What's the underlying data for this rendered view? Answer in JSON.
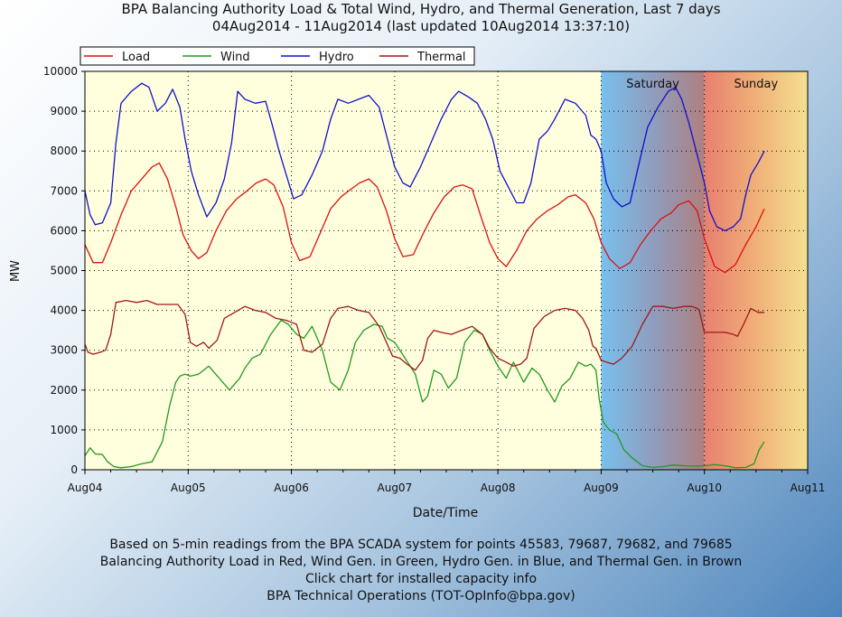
{
  "title_line1": "BPA Balancing Authority Load & Total Wind, Hydro, and Thermal Generation, Last 7 days",
  "title_line2": "04Aug2014 - 11Aug2014 (last updated 10Aug2014 13:37:10)",
  "footer": {
    "line1": "Based on 5-min readings from the BPA SCADA system for points 45583, 79687, 79682, and 79685",
    "line2": "Balancing Authority Load in Red, Wind Gen. in Green, Hydro Gen. in Blue, and Thermal Gen. in Brown",
    "line3": "Click chart for installed capacity info",
    "line4": "BPA Technical Operations (TOT-OpInfo@bpa.gov)"
  },
  "chart_data": {
    "type": "line",
    "xlabel": "Date/Time",
    "ylabel": "MW",
    "ylim": [
      0,
      10000
    ],
    "yticks": [
      0,
      1000,
      2000,
      3000,
      4000,
      5000,
      6000,
      7000,
      8000,
      9000,
      10000
    ],
    "xlim": [
      0,
      7
    ],
    "xticks": [
      {
        "x": 0,
        "label": "Aug04"
      },
      {
        "x": 1,
        "label": "Aug05"
      },
      {
        "x": 2,
        "label": "Aug06"
      },
      {
        "x": 3,
        "label": "Aug07"
      },
      {
        "x": 4,
        "label": "Aug08"
      },
      {
        "x": 5,
        "label": "Aug09"
      },
      {
        "x": 6,
        "label": "Aug10"
      },
      {
        "x": 7,
        "label": "Aug11"
      }
    ],
    "grid": true,
    "legend_position": "top-left",
    "weekend_regions": [
      {
        "label": "Saturday",
        "from": 5,
        "to": 6,
        "colors": [
          "#78c0ee",
          "#8f9dbe",
          "#ae8080"
        ]
      },
      {
        "label": "Sunday",
        "from": 6,
        "to": 7,
        "colors": [
          "#e88070",
          "#f0b078",
          "#f4e090"
        ]
      }
    ],
    "weekday_color": "#ffffde",
    "series": [
      {
        "name": "Load",
        "color": "#dd1111",
        "x": [
          0,
          0.08,
          0.17,
          0.25,
          0.35,
          0.45,
          0.55,
          0.65,
          0.72,
          0.8,
          0.88,
          0.95,
          1.03,
          1.1,
          1.18,
          1.27,
          1.37,
          1.47,
          1.57,
          1.66,
          1.75,
          1.83,
          1.92,
          2.0,
          2.08,
          2.18,
          2.28,
          2.38,
          2.48,
          2.58,
          2.66,
          2.75,
          2.83,
          2.92,
          3.0,
          3.08,
          3.18,
          3.28,
          3.38,
          3.48,
          3.58,
          3.66,
          3.75,
          3.83,
          3.92,
          4.0,
          4.08,
          4.18,
          4.28,
          4.38,
          4.48,
          4.58,
          4.68,
          4.75,
          4.85,
          4.93,
          5.0,
          5.08,
          5.18,
          5.28,
          5.38,
          5.48,
          5.58,
          5.68,
          5.75,
          5.85,
          5.93,
          6.0,
          6.1,
          6.2,
          6.3,
          6.4,
          6.5,
          6.58
        ],
        "y": [
          5650,
          5200,
          5200,
          5700,
          6400,
          7000,
          7300,
          7600,
          7700,
          7300,
          6600,
          5900,
          5500,
          5300,
          5450,
          6000,
          6500,
          6800,
          7000,
          7200,
          7300,
          7150,
          6600,
          5700,
          5250,
          5350,
          5950,
          6550,
          6850,
          7050,
          7200,
          7300,
          7100,
          6500,
          5800,
          5350,
          5400,
          5950,
          6450,
          6850,
          7100,
          7150,
          7050,
          6400,
          5700,
          5300,
          5100,
          5500,
          6000,
          6300,
          6500,
          6650,
          6850,
          6900,
          6700,
          6300,
          5700,
          5300,
          5050,
          5200,
          5650,
          6000,
          6300,
          6450,
          6650,
          6750,
          6500,
          5800,
          5100,
          4950,
          5150,
          5650,
          6100,
          6550
        ]
      },
      {
        "name": "Wind",
        "color": "#229922",
        "x": [
          0,
          0.05,
          0.1,
          0.17,
          0.22,
          0.28,
          0.35,
          0.45,
          0.55,
          0.65,
          0.75,
          0.82,
          0.88,
          0.92,
          0.97,
          1.02,
          1.1,
          1.2,
          1.3,
          1.4,
          1.5,
          1.55,
          1.62,
          1.7,
          1.8,
          1.9,
          1.97,
          2.05,
          2.12,
          2.2,
          2.3,
          2.38,
          2.47,
          2.55,
          2.62,
          2.7,
          2.8,
          2.88,
          2.93,
          3.0,
          3.1,
          3.2,
          3.27,
          3.32,
          3.38,
          3.45,
          3.52,
          3.6,
          3.68,
          3.77,
          3.85,
          3.92,
          4.0,
          4.08,
          4.15,
          4.25,
          4.33,
          4.4,
          4.48,
          4.55,
          4.62,
          4.7,
          4.78,
          4.85,
          4.9,
          4.95,
          4.98,
          5.02,
          5.08,
          5.15,
          5.22,
          5.3,
          5.4,
          5.5,
          5.6,
          5.7,
          5.8,
          5.9,
          6.0,
          6.1,
          6.2,
          6.3,
          6.4,
          6.48,
          6.53,
          6.58
        ],
        "y": [
          350,
          550,
          400,
          380,
          200,
          80,
          50,
          80,
          150,
          200,
          700,
          1600,
          2200,
          2350,
          2400,
          2350,
          2400,
          2600,
          2300,
          2000,
          2300,
          2550,
          2800,
          2900,
          3400,
          3750,
          3650,
          3400,
          3300,
          3600,
          3000,
          2200,
          2000,
          2500,
          3200,
          3500,
          3650,
          3600,
          3300,
          3200,
          2800,
          2400,
          1700,
          1850,
          2500,
          2400,
          2050,
          2300,
          3200,
          3500,
          3400,
          3000,
          2600,
          2300,
          2700,
          2200,
          2550,
          2400,
          2000,
          1700,
          2100,
          2300,
          2700,
          2600,
          2650,
          2500,
          1800,
          1200,
          1000,
          900,
          500,
          300,
          100,
          60,
          80,
          120,
          100,
          90,
          100,
          130,
          100,
          50,
          60,
          150,
          500,
          700
        ]
      },
      {
        "name": "Hydro",
        "color": "#1111cc",
        "x": [
          0,
          0.05,
          0.1,
          0.17,
          0.25,
          0.3,
          0.35,
          0.45,
          0.55,
          0.62,
          0.7,
          0.78,
          0.85,
          0.92,
          0.97,
          1.03,
          1.1,
          1.18,
          1.27,
          1.35,
          1.42,
          1.48,
          1.55,
          1.65,
          1.75,
          1.82,
          1.88,
          1.95,
          2.02,
          2.1,
          2.2,
          2.3,
          2.38,
          2.45,
          2.55,
          2.65,
          2.75,
          2.85,
          2.93,
          3.0,
          3.08,
          3.15,
          3.25,
          3.35,
          3.45,
          3.55,
          3.62,
          3.72,
          3.8,
          3.88,
          3.95,
          4.02,
          4.1,
          4.18,
          4.25,
          4.32,
          4.4,
          4.48,
          4.55,
          4.65,
          4.75,
          4.85,
          4.9,
          4.95,
          5.0,
          5.05,
          5.12,
          5.2,
          5.28,
          5.35,
          5.45,
          5.55,
          5.65,
          5.72,
          5.78,
          5.85,
          5.92,
          6.0,
          6.05,
          6.12,
          6.2,
          6.28,
          6.35,
          6.4,
          6.45,
          6.52,
          6.58
        ],
        "y": [
          7000,
          6400,
          6150,
          6200,
          6700,
          8200,
          9200,
          9500,
          9700,
          9600,
          9000,
          9200,
          9550,
          9100,
          8300,
          7500,
          6900,
          6350,
          6700,
          7300,
          8200,
          9500,
          9300,
          9200,
          9250,
          8600,
          8000,
          7400,
          6800,
          6900,
          7400,
          8000,
          8800,
          9300,
          9200,
          9300,
          9400,
          9100,
          8300,
          7600,
          7200,
          7100,
          7600,
          8200,
          8800,
          9300,
          9500,
          9350,
          9200,
          8800,
          8300,
          7500,
          7100,
          6700,
          6700,
          7200,
          8300,
          8500,
          8800,
          9300,
          9200,
          8900,
          8400,
          8300,
          8000,
          7200,
          6800,
          6600,
          6700,
          7500,
          8600,
          9100,
          9500,
          9600,
          9300,
          8700,
          8000,
          7200,
          6500,
          6100,
          6000,
          6100,
          6300,
          6900,
          7400,
          7700,
          8000
        ]
      },
      {
        "name": "Thermal",
        "color": "#a01818",
        "x": [
          0,
          0.03,
          0.08,
          0.15,
          0.2,
          0.25,
          0.3,
          0.4,
          0.5,
          0.6,
          0.7,
          0.8,
          0.9,
          0.97,
          1.02,
          1.08,
          1.15,
          1.2,
          1.28,
          1.35,
          1.45,
          1.55,
          1.65,
          1.75,
          1.85,
          1.95,
          2.0,
          2.05,
          2.12,
          2.2,
          2.25,
          2.3,
          2.38,
          2.45,
          2.55,
          2.65,
          2.75,
          2.85,
          2.92,
          2.98,
          3.05,
          3.12,
          3.2,
          3.27,
          3.32,
          3.38,
          3.45,
          3.55,
          3.65,
          3.75,
          3.85,
          3.92,
          4.0,
          4.08,
          4.15,
          4.22,
          4.28,
          4.35,
          4.45,
          4.55,
          4.65,
          4.75,
          4.82,
          4.88,
          4.92,
          4.95,
          5.0,
          5.05,
          5.12,
          5.2,
          5.3,
          5.4,
          5.5,
          5.6,
          5.7,
          5.8,
          5.88,
          5.93,
          5.95,
          6.0,
          6.05,
          6.1,
          6.2,
          6.28,
          6.32,
          6.38,
          6.45,
          6.52,
          6.58
        ],
        "y": [
          3150,
          2950,
          2900,
          2950,
          3000,
          3400,
          4200,
          4250,
          4200,
          4250,
          4150,
          4150,
          4150,
          3900,
          3200,
          3100,
          3200,
          3050,
          3250,
          3800,
          3950,
          4100,
          4000,
          3950,
          3800,
          3750,
          3700,
          3650,
          3000,
          2950,
          3050,
          3150,
          3800,
          4050,
          4100,
          4000,
          3950,
          3600,
          3200,
          2850,
          2800,
          2650,
          2500,
          2750,
          3300,
          3500,
          3450,
          3400,
          3500,
          3600,
          3400,
          3050,
          2800,
          2700,
          2600,
          2650,
          2800,
          3550,
          3850,
          4000,
          4050,
          4000,
          3800,
          3500,
          3100,
          3050,
          2750,
          2700,
          2650,
          2800,
          3100,
          3650,
          4100,
          4100,
          4050,
          4100,
          4100,
          4050,
          4000,
          3450,
          3450,
          3450,
          3450,
          3400,
          3350,
          3650,
          4050,
          3950,
          3950
        ]
      }
    ]
  }
}
